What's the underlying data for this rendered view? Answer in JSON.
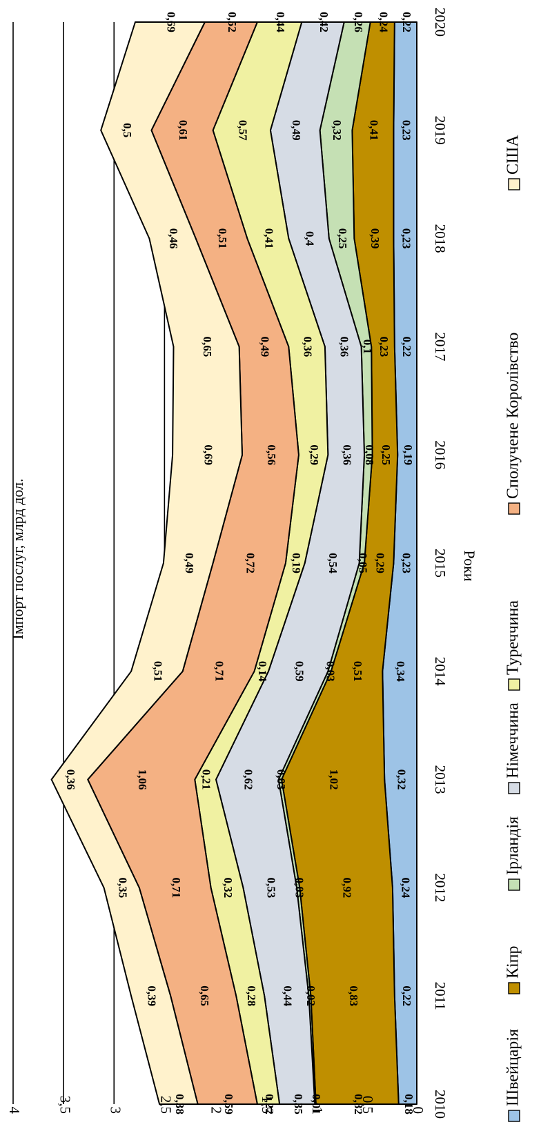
{
  "chart_data": {
    "type": "area",
    "stacked": true,
    "title": "",
    "xlabel": "Роки",
    "ylabel": "Імпорт послуг, млрд дол.",
    "ylim": [
      0,
      4
    ],
    "yticks": [
      "0",
      "0,5",
      "1",
      "1,5",
      "2",
      "2,5",
      "3",
      "3,5",
      "4"
    ],
    "yticks_values": [
      0,
      0.5,
      1,
      1.5,
      2,
      2.5,
      3,
      3.5,
      4
    ],
    "categories": [
      "2010",
      "2011",
      "2012",
      "2013",
      "2014",
      "2015",
      "2016",
      "2017",
      "2018",
      "2019",
      "2020"
    ],
    "grid": true,
    "legend_position": "bottom",
    "rotated": "90deg clockwise (page viewed sideways)",
    "series": [
      {
        "name": "Швейцарія",
        "color": "#9dc3e6",
        "values": [
          0.18,
          0.22,
          0.24,
          0.32,
          0.34,
          0.23,
          0.19,
          0.22,
          0.23,
          0.23,
          0.22
        ],
        "labels": [
          "0,18",
          "0,22",
          "0,24",
          "0,32",
          "0,34",
          "0,23",
          "0,19",
          "0,22",
          "0,23",
          "0,23",
          "0,22"
        ]
      },
      {
        "name": "Кіпр",
        "color": "#bf8f00",
        "values": [
          0.82,
          0.83,
          0.92,
          1.02,
          0.51,
          0.29,
          0.25,
          0.23,
          0.39,
          0.41,
          0.24
        ],
        "labels": [
          "0,82",
          "0,83",
          "0,92",
          "1,02",
          "0,51",
          "0,29",
          "0,25",
          "0,23",
          "0,39",
          "0,41",
          "0,24"
        ]
      },
      {
        "name": "Ірландія",
        "color": "#c5e0b4",
        "values": [
          0.01,
          0.02,
          0.03,
          0.03,
          0.03,
          0.05,
          0.08,
          0.1,
          0.25,
          0.32,
          0.26
        ],
        "labels": [
          "0,01",
          "0,02",
          "0,03",
          "0,03",
          "0,03",
          "0,05",
          "0,08",
          "0,1",
          "0,25",
          "0,32",
          "0,26"
        ]
      },
      {
        "name": "Німеччина",
        "color": "#d6dce5",
        "values": [
          0.35,
          0.44,
          0.53,
          0.62,
          0.59,
          0.54,
          0.36,
          0.36,
          0.4,
          0.49,
          0.42
        ],
        "labels": [
          "0,35",
          "0,44",
          "0,53",
          "0,62",
          "0,59",
          "0,54",
          "0,36",
          "0,36",
          "0,4",
          "0,49",
          "0,42"
        ]
      },
      {
        "name": "Туреччина",
        "color": "#f0f1a2",
        "values": [
          0.22,
          0.28,
          0.32,
          0.21,
          0.14,
          0.19,
          0.29,
          0.36,
          0.41,
          0.57,
          0.44
        ],
        "labels": [
          "0,22",
          "0,28",
          "0,32",
          "0,21",
          "0,14",
          "0,19",
          "0,29",
          "0,36",
          "0,41",
          "0,57",
          "0,44"
        ]
      },
      {
        "name": "Сполучене Королівство",
        "color": "#f4b183",
        "values": [
          0.59,
          0.65,
          0.71,
          1.06,
          0.71,
          0.72,
          0.56,
          0.49,
          0.51,
          0.61,
          0.52
        ],
        "labels": [
          "0,59",
          "0,65",
          "0,71",
          "1,06",
          "0,71",
          "0,72",
          "0,56",
          "0,49",
          "0,51",
          "0,61",
          "0,52"
        ]
      },
      {
        "name": "США",
        "color": "#fff2cc",
        "values": [
          0.38,
          0.39,
          0.35,
          0.36,
          0.51,
          0.49,
          0.69,
          0.65,
          0.46,
          0.5,
          0.69
        ],
        "labels": [
          "0,38",
          "0,39",
          "0,35",
          "0,36",
          "0,51",
          "0,49",
          "0,69",
          "0,65",
          "0,46",
          "0,5",
          "0,69"
        ]
      }
    ]
  }
}
